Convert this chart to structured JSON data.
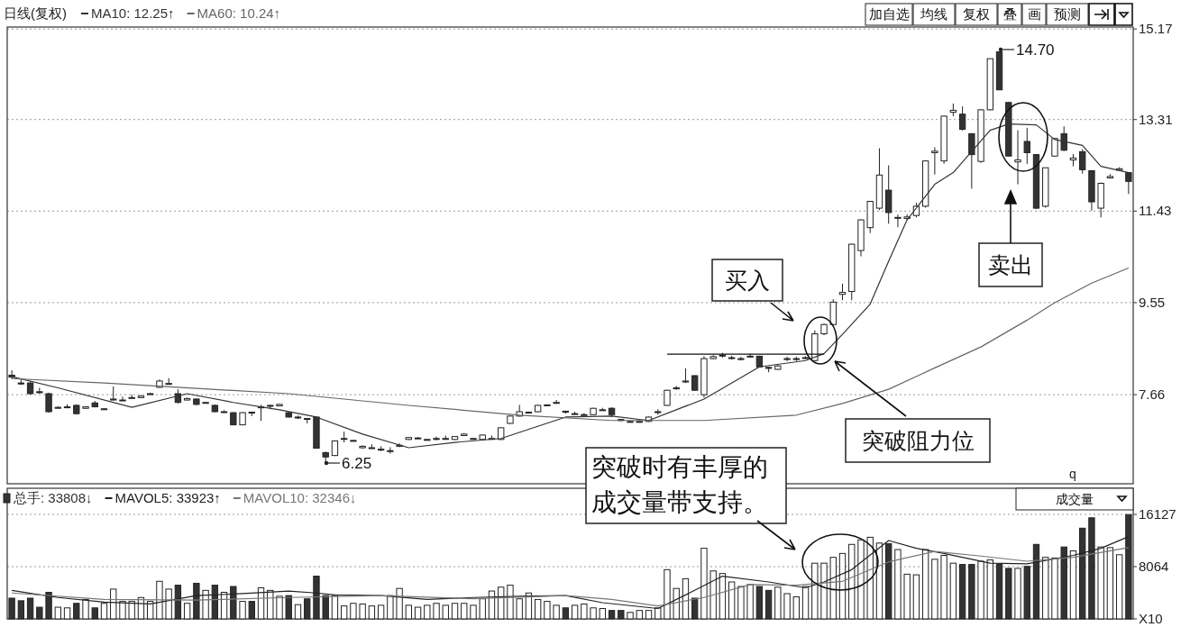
{
  "chart_data": [
    {
      "type": "candlestick",
      "title": "日线(复权)",
      "categories": [
        null,
        null,
        null,
        null,
        null,
        null,
        null,
        null,
        null,
        null,
        null,
        null,
        null,
        null,
        null,
        null,
        null,
        null,
        null,
        null,
        null,
        null,
        null,
        null,
        null,
        null,
        null,
        null,
        null,
        null,
        null,
        null,
        null,
        null,
        null,
        null,
        null,
        null,
        null,
        null,
        null,
        null,
        null,
        null,
        null,
        null,
        null,
        null,
        null,
        null,
        null,
        null,
        null,
        null,
        null,
        null,
        null,
        null,
        null,
        null,
        null,
        null,
        null,
        null,
        null,
        null,
        null,
        null,
        null,
        null,
        null,
        null,
        null,
        null,
        null,
        null,
        null,
        null,
        null,
        null,
        null,
        null,
        null,
        null,
        null,
        null,
        null,
        null,
        null,
        null,
        null,
        null,
        null,
        null,
        null,
        null,
        null,
        null,
        null,
        null,
        null,
        null,
        null,
        null,
        null,
        null,
        null,
        null,
        null,
        null,
        null,
        null,
        null,
        null,
        null,
        null,
        null,
        null,
        null,
        null,
        null,
        null
      ],
      "ohlc": [
        [
          8.06,
          8.16,
          7.98,
          8.02
        ],
        [
          7.9,
          7.97,
          7.86,
          7.88
        ],
        [
          7.9,
          7.93,
          7.66,
          7.68
        ],
        [
          7.72,
          7.8,
          7.68,
          7.7
        ],
        [
          7.68,
          7.7,
          7.29,
          7.31
        ],
        [
          7.38,
          7.42,
          7.37,
          7.4
        ],
        [
          7.4,
          7.46,
          7.38,
          7.41
        ],
        [
          7.44,
          7.46,
          7.25,
          7.27
        ],
        [
          7.38,
          7.42,
          7.37,
          7.41
        ],
        [
          7.49,
          7.53,
          7.4,
          7.41
        ],
        [
          7.37,
          7.38,
          7.36,
          7.37
        ],
        [
          7.55,
          7.83,
          7.54,
          7.57
        ],
        [
          7.54,
          7.62,
          7.53,
          7.55
        ],
        [
          7.59,
          7.66,
          7.58,
          7.6
        ],
        [
          7.6,
          7.65,
          7.59,
          7.63
        ],
        [
          7.67,
          7.7,
          7.66,
          7.68
        ],
        [
          7.81,
          7.97,
          7.8,
          7.94
        ],
        [
          7.88,
          8.0,
          7.87,
          7.89
        ],
        [
          7.68,
          7.77,
          7.48,
          7.5
        ],
        [
          7.55,
          7.6,
          7.54,
          7.58
        ],
        [
          7.57,
          7.58,
          7.44,
          7.46
        ],
        [
          7.5,
          7.51,
          7.49,
          7.5
        ],
        [
          7.44,
          7.46,
          7.3,
          7.31
        ],
        [
          7.3,
          7.34,
          7.29,
          7.31
        ],
        [
          7.29,
          7.3,
          7.03,
          7.04
        ],
        [
          7.04,
          7.3,
          7.03,
          7.29
        ],
        [
          7.3,
          7.31,
          7.22,
          7.29
        ],
        [
          7.39,
          7.45,
          7.12,
          7.41
        ],
        [
          7.44,
          7.45,
          7.36,
          7.44
        ],
        [
          7.43,
          7.47,
          7.42,
          7.46
        ],
        [
          7.29,
          7.31,
          7.19,
          7.2
        ],
        [
          7.2,
          7.23,
          7.16,
          7.2
        ],
        [
          7.17,
          7.18,
          7.07,
          7.16
        ],
        [
          7.2,
          7.21,
          6.56,
          6.56
        ],
        [
          6.47,
          6.49,
          6.25,
          6.38
        ],
        [
          6.41,
          6.72,
          6.4,
          6.71
        ],
        [
          6.76,
          6.9,
          6.68,
          6.76
        ],
        [
          6.72,
          6.73,
          6.71,
          6.72
        ],
        [
          6.57,
          6.62,
          6.55,
          6.6
        ],
        [
          6.57,
          6.64,
          6.56,
          6.57
        ],
        [
          6.54,
          6.6,
          6.5,
          6.54
        ],
        [
          6.51,
          6.58,
          6.45,
          6.51
        ],
        [
          6.6,
          6.66,
          6.58,
          6.62
        ],
        [
          6.74,
          6.79,
          6.73,
          6.78
        ],
        [
          6.76,
          6.79,
          6.75,
          6.77
        ],
        [
          6.74,
          6.75,
          6.73,
          6.74
        ],
        [
          6.76,
          6.8,
          6.72,
          6.76
        ],
        [
          6.75,
          6.82,
          6.74,
          6.76
        ],
        [
          6.74,
          6.81,
          6.73,
          6.8
        ],
        [
          6.82,
          6.87,
          6.81,
          6.85
        ],
        [
          6.76,
          6.77,
          6.75,
          6.76
        ],
        [
          6.74,
          6.84,
          6.73,
          6.83
        ],
        [
          6.76,
          6.82,
          6.75,
          6.76
        ],
        [
          6.74,
          6.98,
          6.73,
          6.98
        ],
        [
          7.07,
          7.23,
          7.06,
          7.22
        ],
        [
          7.22,
          7.45,
          7.21,
          7.31
        ],
        [
          7.3,
          7.31,
          7.29,
          7.3
        ],
        [
          7.31,
          7.45,
          7.3,
          7.44
        ],
        [
          7.45,
          7.46,
          7.44,
          7.45
        ],
        [
          7.49,
          7.55,
          7.48,
          7.5
        ],
        [
          7.32,
          7.33,
          7.27,
          7.3
        ],
        [
          7.27,
          7.31,
          7.26,
          7.27
        ],
        [
          7.25,
          7.28,
          7.24,
          7.25
        ],
        [
          7.25,
          7.39,
          7.24,
          7.38
        ],
        [
          7.35,
          7.39,
          7.34,
          7.35
        ],
        [
          7.38,
          7.4,
          7.2,
          7.25
        ],
        [
          7.15,
          7.16,
          7.11,
          7.13
        ],
        [
          7.11,
          7.13,
          7.09,
          7.11
        ],
        [
          7.11,
          7.12,
          7.1,
          7.11
        ],
        [
          7.11,
          7.21,
          7.1,
          7.2
        ],
        [
          7.31,
          7.36,
          7.25,
          7.31
        ],
        [
          7.44,
          7.76,
          7.43,
          7.75
        ],
        [
          7.78,
          7.84,
          7.76,
          7.8
        ],
        [
          7.92,
          8.2,
          7.9,
          7.94
        ],
        [
          8.05,
          8.06,
          7.75,
          7.75
        ],
        [
          7.66,
          8.45,
          7.6,
          8.4
        ],
        [
          8.4,
          8.47,
          8.39,
          8.44
        ],
        [
          8.47,
          8.52,
          8.42,
          8.47
        ],
        [
          8.42,
          8.46,
          8.38,
          8.42
        ],
        [
          8.4,
          8.44,
          8.36,
          8.4
        ],
        [
          8.45,
          8.5,
          8.43,
          8.45
        ],
        [
          8.45,
          8.46,
          8.23,
          8.23
        ],
        [
          8.22,
          8.23,
          8.12,
          8.2
        ],
        [
          8.18,
          8.27,
          8.17,
          8.25
        ],
        [
          8.4,
          8.44,
          8.35,
          8.4
        ],
        [
          8.4,
          8.44,
          8.35,
          8.4
        ],
        [
          8.42,
          8.45,
          8.4,
          8.42
        ],
        [
          8.36,
          8.98,
          8.34,
          8.91
        ],
        [
          8.91,
          9.12,
          8.88,
          9.1
        ],
        [
          9.1,
          9.62,
          9.08,
          9.56
        ],
        [
          9.72,
          9.94,
          9.6,
          9.76
        ],
        [
          9.78,
          10.76,
          9.6,
          10.75
        ],
        [
          10.62,
          11.26,
          10.5,
          11.25
        ],
        [
          11.09,
          11.64,
          10.98,
          11.63
        ],
        [
          11.49,
          12.72,
          11.45,
          12.17
        ],
        [
          11.86,
          12.37,
          11.17,
          11.4
        ],
        [
          11.3,
          11.36,
          11.1,
          11.3
        ],
        [
          11.28,
          11.36,
          11.25,
          11.31
        ],
        [
          11.34,
          11.6,
          11.3,
          11.53
        ],
        [
          11.53,
          12.47,
          11.5,
          12.46
        ],
        [
          12.63,
          12.74,
          12.18,
          12.66
        ],
        [
          12.46,
          13.39,
          12.4,
          13.38
        ],
        [
          13.46,
          13.64,
          13.38,
          13.5
        ],
        [
          13.42,
          13.58,
          13.08,
          13.11
        ],
        [
          13.02,
          13.03,
          11.89,
          12.59
        ],
        [
          12.45,
          13.52,
          12.42,
          13.51
        ],
        [
          13.51,
          14.56,
          13.5,
          14.56
        ],
        [
          14.7,
          14.7,
          13.92,
          13.92
        ],
        [
          13.66,
          13.67,
          12.56,
          12.56
        ],
        [
          12.44,
          13.09,
          11.98,
          12.48
        ],
        [
          12.86,
          13.14,
          12.4,
          12.63
        ],
        [
          12.59,
          12.6,
          11.47,
          11.49
        ],
        [
          11.53,
          12.32,
          11.5,
          12.32
        ],
        [
          12.56,
          12.93,
          12.55,
          12.92
        ],
        [
          13.02,
          13.17,
          12.66,
          12.68
        ],
        [
          12.48,
          12.6,
          12.35,
          12.52
        ],
        [
          12.65,
          12.7,
          12.2,
          12.28
        ],
        [
          12.26,
          12.27,
          11.44,
          11.62
        ],
        [
          11.49,
          12.02,
          11.3,
          12.0
        ],
        [
          12.11,
          12.19,
          12.1,
          12.14
        ],
        [
          12.27,
          12.33,
          12.26,
          12.3
        ],
        [
          12.22,
          12.23,
          11.78,
          12.04
        ]
      ],
      "series": [
        {
          "name": "MA10: 12.25↑",
          "type": "line",
          "color": "#333333",
          "values": [
            8.03,
            null,
            null,
            null,
            null,
            7.8,
            null,
            null,
            null,
            null,
            null,
            null,
            null,
            7.4,
            null,
            null,
            null,
            null,
            null,
            7.68,
            null,
            null,
            null,
            null,
            7.5,
            null,
            null,
            null,
            null,
            7.35,
            null,
            null,
            null,
            7.2,
            null,
            null,
            null,
            null,
            6.85,
            null,
            null,
            null,
            null,
            6.57,
            null,
            null,
            null,
            null,
            6.68,
            null,
            null,
            null,
            null,
            6.76,
            null,
            null,
            null,
            null,
            null,
            null,
            7.2,
            null,
            null,
            null,
            null,
            7.22,
            null,
            null,
            null,
            7.13,
            null,
            null,
            null,
            null,
            null,
            7.57,
            null,
            null,
            null,
            null,
            null,
            8.23,
            null,
            null,
            null,
            null,
            8.36,
            null,
            8.5,
            null,
            8.9,
            null,
            null,
            9.52,
            null,
            10.4,
            null,
            11.25,
            null,
            null,
            11.98,
            null,
            12.22,
            null,
            null,
            null,
            13.09,
            null,
            13.22,
            null,
            null,
            13.2,
            null,
            12.9,
            null,
            null,
            12.78,
            null,
            12.35,
            null,
            null,
            12.22
          ]
        },
        {
          "name": "MA60: 10.24↑",
          "type": "line",
          "color": "#666666",
          "values": [
            7.99,
            null,
            null,
            null,
            null,
            null,
            null,
            null,
            null,
            null,
            7.9,
            null,
            null,
            null,
            null,
            null,
            null,
            null,
            null,
            null,
            7.79,
            null,
            null,
            null,
            null,
            null,
            null,
            null,
            null,
            null,
            7.68,
            null,
            null,
            null,
            null,
            null,
            null,
            null,
            null,
            null,
            null,
            null,
            null,
            7.44,
            null,
            null,
            null,
            null,
            null,
            null,
            null,
            null,
            null,
            null,
            null,
            7.24,
            null,
            null,
            null,
            null,
            null,
            null,
            null,
            null,
            null,
            7.13,
            null,
            null,
            null,
            null,
            null,
            null,
            null,
            null,
            null,
            7.13,
            null,
            null,
            null,
            null,
            null,
            null,
            null,
            null,
            null,
            7.24,
            null,
            null,
            null,
            null,
            7.48,
            null,
            null,
            null,
            null,
            7.77,
            null,
            null,
            null,
            null,
            8.21,
            null,
            null,
            null,
            null,
            8.64,
            null,
            null,
            null,
            null,
            9.19,
            null,
            null,
            9.55,
            null,
            null,
            null,
            9.95,
            null,
            null,
            null,
            10.26
          ]
        },
        {
          "type": "line",
          "color": "#111111",
          "values": [
            null,
            null,
            null,
            null,
            null,
            null,
            null,
            null,
            null,
            null,
            null,
            null,
            null,
            null,
            null,
            null,
            null,
            null,
            null,
            null,
            null,
            null,
            null,
            null,
            null,
            null,
            null,
            null,
            null,
            null,
            null,
            null,
            null,
            null,
            null,
            null,
            null,
            null,
            null,
            null,
            null,
            null,
            null,
            null,
            null,
            null,
            null,
            null,
            null,
            null,
            null,
            null,
            null,
            null,
            null,
            null,
            null,
            null,
            null,
            null,
            null,
            null,
            null,
            null,
            null,
            null,
            null,
            null,
            null,
            null,
            null,
            8.49,
            null,
            null,
            null,
            null,
            null,
            null,
            null,
            null,
            null,
            null,
            null,
            null,
            null,
            null,
            null,
            null,
            8.49,
            null,
            null,
            null,
            null,
            null,
            null,
            null,
            null,
            null,
            null,
            null,
            null,
            null,
            null,
            null,
            null,
            null,
            null,
            null,
            null,
            null,
            null,
            null,
            null,
            null,
            null,
            null,
            null,
            null,
            null,
            null,
            null,
            null
          ]
        }
      ],
      "ylim": [
        5.83,
        15.21
      ],
      "yticks": [
        7.66,
        9.55,
        11.43,
        13.31,
        15.17
      ],
      "grid": "y",
      "legend": "top left",
      "tick_labels": "y",
      "annotations": [
        "14.70",
        "6.25",
        "买入",
        "突破阻力位",
        "卖出",
        "加自选",
        "均线",
        "复权",
        "叠",
        "画",
        "预测"
      ]
    },
    {
      "type": "bar",
      "categories": [
        null,
        null,
        null,
        null,
        null,
        null,
        null,
        null,
        null,
        null,
        null,
        null,
        null,
        null,
        null,
        null,
        null,
        null,
        null,
        null,
        null,
        null,
        null,
        null,
        null,
        null,
        null,
        null,
        null,
        null,
        null,
        null,
        null,
        null,
        null,
        null,
        null,
        null,
        null,
        null,
        null,
        null,
        null,
        null,
        null,
        null,
        null,
        null,
        null,
        null,
        null,
        null,
        null,
        null,
        null,
        null,
        null,
        null,
        null,
        null,
        null,
        null,
        null,
        null,
        null,
        null,
        null,
        null,
        null,
        null,
        null,
        null,
        null,
        null,
        null,
        null,
        null,
        null,
        null,
        null,
        null,
        null,
        null,
        null,
        null,
        null,
        null,
        null,
        null,
        null,
        null,
        null,
        null,
        null,
        null,
        null,
        null,
        null,
        null,
        null,
        null,
        null,
        null,
        null,
        null,
        null,
        null,
        null,
        null,
        null,
        null,
        null,
        null,
        null,
        null,
        null,
        null,
        null,
        null,
        null,
        null,
        null
      ],
      "series": [
        {
          "name": "总手: 33808↓",
          "type": "bar",
          "values": [
            3200,
            2800,
            3200,
            1800,
            4100,
            1800,
            1700,
            2400,
            3000,
            1700,
            2400,
            4600,
            2700,
            2700,
            3300,
            2700,
            5800,
            4600,
            5200,
            2400,
            5500,
            4400,
            5200,
            4100,
            5000,
            2700,
            2700,
            4800,
            4400,
            3500,
            3600,
            2200,
            3100,
            6600,
            3600,
            3600,
            2000,
            2400,
            2300,
            2000,
            2100,
            3600,
            4700,
            2100,
            1800,
            2100,
            2400,
            2100,
            2400,
            2400,
            2100,
            3100,
            4300,
            4900,
            5200,
            3100,
            4000,
            3000,
            2700,
            2100,
            1700,
            2100,
            2300,
            1700,
            1600,
            1300,
            1300,
            1000,
            1300,
            1300,
            1700,
            7600,
            4700,
            6200,
            3200,
            10900,
            7400,
            7000,
            5700,
            5000,
            5300,
            5000,
            4400,
            4900,
            3900,
            3400,
            5000,
            8600,
            8600,
            9500,
            10100,
            11500,
            12200,
            12600,
            11700,
            11600,
            10700,
            6900,
            6800,
            10700,
            9200,
            9800,
            8600,
            8400,
            8400,
            8900,
            9100,
            8400,
            7800,
            7800,
            8100,
            11500,
            9500,
            9400,
            11100,
            10500,
            14000,
            15600,
            11100,
            11000,
            9900,
            16100
          ],
          "colors": [
            "#333333",
            "#333333",
            "#333333",
            "#333333",
            "#333333",
            "#ffffff",
            "#ffffff",
            "#333333",
            "#ffffff",
            "#333333",
            "#ffffff",
            "#ffffff",
            "#ffffff",
            "#ffffff",
            "#ffffff",
            "#ffffff",
            "#ffffff",
            "#ffffff",
            "#333333",
            "#ffffff",
            "#333333",
            "#ffffff",
            "#333333",
            "#ffffff",
            "#333333",
            "#ffffff",
            "#333333",
            "#ffffff",
            "#ffffff",
            "#ffffff",
            "#333333",
            "#ffffff",
            "#333333",
            "#333333",
            "#333333",
            "#ffffff",
            "#ffffff",
            "#ffffff",
            "#ffffff",
            "#ffffff",
            "#ffffff",
            "#ffffff",
            "#ffffff",
            "#ffffff",
            "#ffffff",
            "#ffffff",
            "#ffffff",
            "#ffffff",
            "#ffffff",
            "#ffffff",
            "#ffffff",
            "#ffffff",
            "#ffffff",
            "#ffffff",
            "#ffffff",
            "#ffffff",
            "#ffffff",
            "#ffffff",
            "#ffffff",
            "#ffffff",
            "#333333",
            "#ffffff",
            "#ffffff",
            "#ffffff",
            "#ffffff",
            "#333333",
            "#333333",
            "#ffffff",
            "#ffffff",
            "#ffffff",
            "#ffffff",
            "#ffffff",
            "#ffffff",
            "#ffffff",
            "#333333",
            "#ffffff",
            "#ffffff",
            "#ffffff",
            "#ffffff",
            "#ffffff",
            "#ffffff",
            "#333333",
            "#333333",
            "#ffffff",
            "#ffffff",
            "#ffffff",
            "#ffffff",
            "#ffffff",
            "#ffffff",
            "#ffffff",
            "#ffffff",
            "#ffffff",
            "#ffffff",
            "#ffffff",
            "#ffffff",
            "#333333",
            "#ffffff",
            "#ffffff",
            "#ffffff",
            "#ffffff",
            "#ffffff",
            "#ffffff",
            "#ffffff",
            "#333333",
            "#333333",
            "#ffffff",
            "#ffffff",
            "#333333",
            "#333333",
            "#ffffff",
            "#333333",
            "#333333",
            "#ffffff",
            "#ffffff",
            "#333333",
            "#ffffff",
            "#333333",
            "#333333",
            "#ffffff",
            "#ffffff",
            "#ffffff",
            "#333333"
          ]
        },
        {
          "name": "MAVOL5: 33923↑",
          "type": "line",
          "color": "#222222",
          "values": [
            4400,
            null,
            null,
            null,
            null,
            3300,
            null,
            null,
            null,
            null,
            2600,
            null,
            null,
            null,
            null,
            2300,
            null,
            null,
            null,
            null,
            3600,
            null,
            null,
            null,
            null,
            3900,
            null,
            null,
            null,
            null,
            4300,
            null,
            null,
            4000,
            null,
            3700,
            null,
            null,
            null,
            null,
            3600,
            null,
            null,
            null,
            null,
            3000,
            null,
            null,
            null,
            null,
            3300,
            null,
            null,
            null,
            null,
            3500,
            null,
            null,
            null,
            null,
            3600,
            null,
            null,
            null,
            2500,
            null,
            null,
            null,
            null,
            null,
            1600,
            null,
            null,
            3700,
            null,
            null,
            null,
            6600,
            null,
            null,
            null,
            null,
            5700,
            null,
            null,
            null,
            4800,
            null,
            5700,
            null,
            null,
            7600,
            null,
            null,
            null,
            12100,
            null,
            null,
            10900,
            null,
            null,
            10100,
            null,
            null,
            null,
            null,
            8600,
            null,
            null,
            null,
            8500,
            null,
            9000,
            null,
            null,
            9800,
            null,
            null,
            10900,
            null,
            null,
            12700
          ]
        },
        {
          "name": "MAVOL10: 32346↓",
          "type": "line",
          "color": "#777777",
          "values": [
            4000,
            null,
            null,
            null,
            null,
            null,
            null,
            null,
            null,
            null,
            3000,
            null,
            null,
            null,
            null,
            null,
            null,
            null,
            null,
            null,
            2900,
            null,
            null,
            null,
            null,
            null,
            null,
            null,
            null,
            null,
            3300,
            null,
            null,
            null,
            null,
            null,
            null,
            null,
            null,
            null,
            3600,
            null,
            null,
            null,
            null,
            null,
            null,
            null,
            null,
            null,
            3100,
            null,
            null,
            null,
            null,
            null,
            null,
            null,
            null,
            null,
            3600,
            null,
            null,
            null,
            null,
            3000,
            null,
            null,
            null,
            null,
            2000,
            null,
            null,
            null,
            null,
            3300,
            null,
            null,
            null,
            null,
            5300,
            null,
            null,
            null,
            null,
            5200,
            null,
            null,
            null,
            null,
            5800,
            null,
            null,
            null,
            null,
            8800,
            null,
            null,
            null,
            null,
            10400,
            null,
            null,
            null,
            null,
            9700,
            null,
            null,
            null,
            null,
            8900,
            null,
            null,
            null,
            null,
            9500,
            null,
            null,
            null,
            null,
            null,
            11000
          ]
        }
      ],
      "ylim": [
        0,
        20160
      ],
      "yticks": [
        {
          "value": 0,
          "label": "X10"
        },
        8064,
        16127
      ],
      "grid": "y",
      "legend": "top left",
      "tick_labels": "y",
      "annotations": [
        "突破时有丰厚的成交量带支持。",
        "成交量",
        "q"
      ]
    }
  ]
}
